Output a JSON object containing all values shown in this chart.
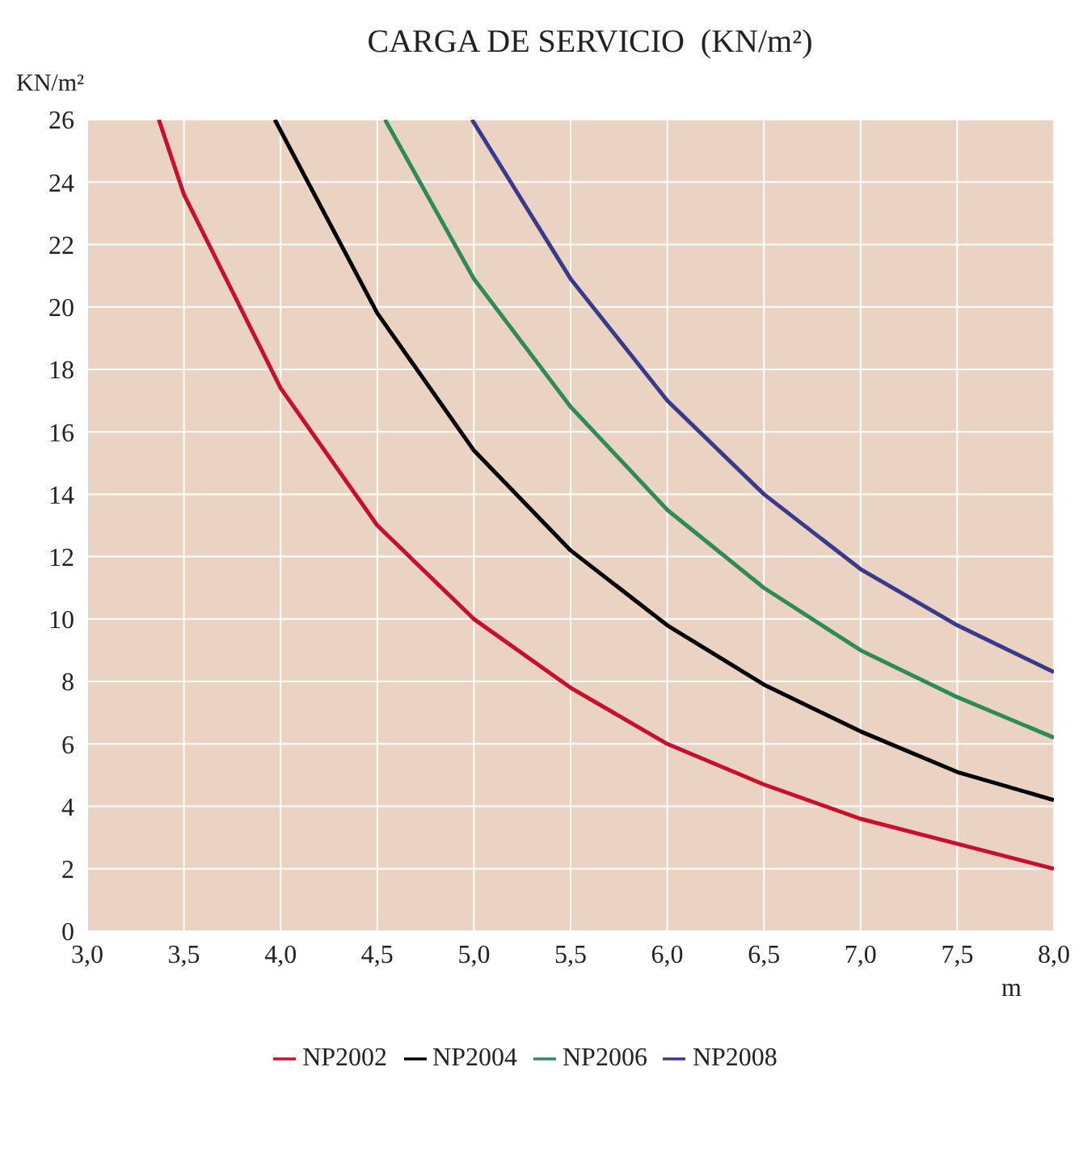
{
  "chart_data": {
    "type": "line",
    "title": "CARGA DE SERVICIO  (KN/m²)",
    "ylabel": "KN/m²",
    "xlabel": "m",
    "xlim": [
      3,
      8
    ],
    "xticks": [
      {
        "value": 3,
        "label": "3,0"
      },
      {
        "value": 3.5,
        "label": "3,5"
      },
      {
        "value": 4,
        "label": "4,0"
      },
      {
        "value": 4.5,
        "label": "4,5"
      },
      {
        "value": 5,
        "label": "5,0"
      },
      {
        "value": 5.5,
        "label": "5,5"
      },
      {
        "value": 6,
        "label": "6,0"
      },
      {
        "value": 6.5,
        "label": "6,5"
      },
      {
        "value": 7,
        "label": "7,0"
      },
      {
        "value": 7.5,
        "label": "7,5"
      },
      {
        "value": 8,
        "label": "8,0"
      }
    ],
    "ylim": [
      0,
      26
    ],
    "yticks": [
      0,
      2,
      4,
      6,
      8,
      10,
      12,
      14,
      16,
      18,
      20,
      22,
      24,
      26
    ],
    "grid": true,
    "legend": "bottom",
    "line_style": "solid",
    "marker": "none",
    "series": [
      {
        "name": "NP2002",
        "color": "#c8102e",
        "x": [
          3.37,
          3.5,
          4,
          4.5,
          5,
          5.5,
          6,
          6.5,
          7,
          7.5,
          8
        ],
        "values": [
          26,
          23.6,
          17.4,
          13,
          10,
          7.8,
          6,
          4.7,
          3.6,
          2.8,
          2
        ]
      },
      {
        "name": "NP2004",
        "color": "#000000",
        "x": [
          3.97,
          4.5,
          5,
          5.5,
          6,
          6.5,
          7,
          7.5,
          8
        ],
        "values": [
          26,
          19.8,
          15.4,
          12.2,
          9.8,
          7.9,
          6.4,
          5.1,
          4.2
        ]
      },
      {
        "name": "NP2006",
        "color": "#2e8b57",
        "x": [
          4.54,
          5,
          5.5,
          6,
          6.5,
          7,
          7.5,
          8
        ],
        "values": [
          26,
          20.9,
          16.8,
          13.5,
          11,
          9,
          7.5,
          6.2
        ]
      },
      {
        "name": "NP2008",
        "color": "#3a3a8c",
        "x": [
          4.99,
          5.5,
          6,
          6.5,
          7,
          7.5,
          8
        ],
        "values": [
          26,
          20.9,
          17,
          14,
          11.6,
          9.8,
          8.3
        ]
      }
    ]
  }
}
